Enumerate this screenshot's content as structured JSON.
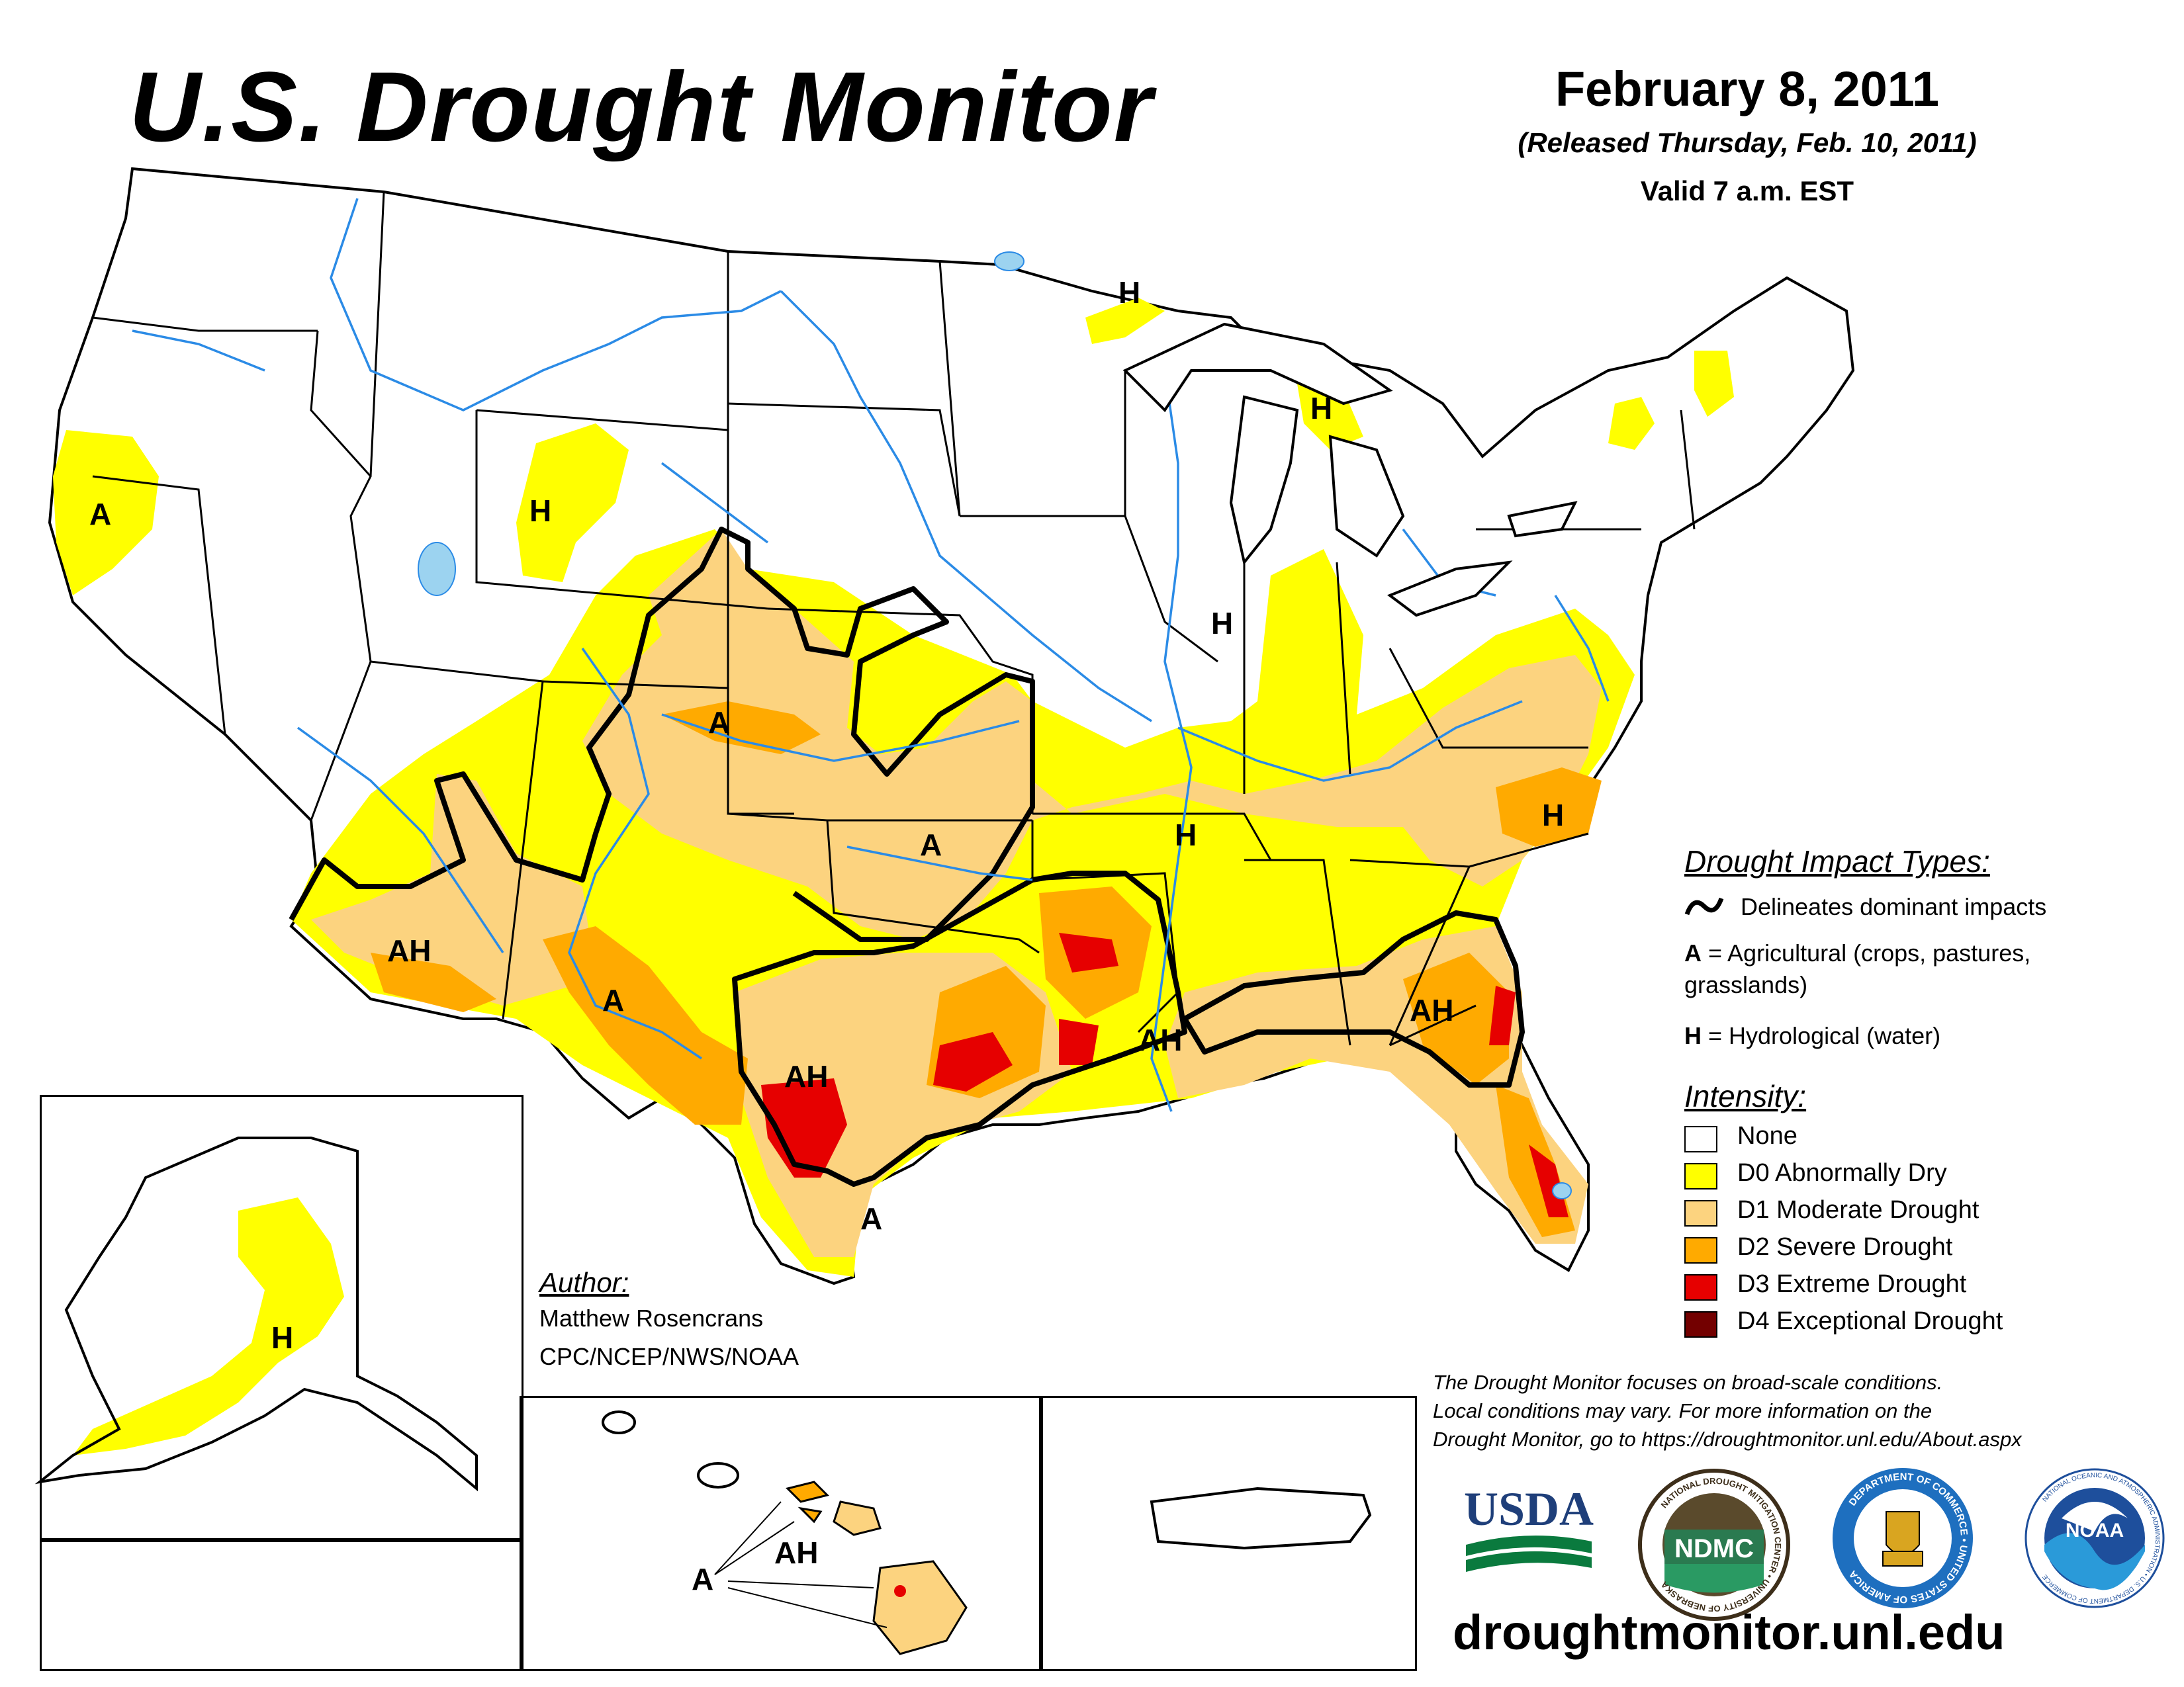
{
  "header": {
    "title": "U.S. Drought Monitor",
    "date": "February 8, 2011",
    "released": "(Released Thursday, Feb. 10, 2011)",
    "valid": "Valid 7 a.m. EST"
  },
  "map_labels": {
    "ca": "A",
    "wy": "H",
    "co": "A",
    "ks": "A",
    "az": "AH",
    "nm": "A",
    "tx": "AH",
    "tx_south": "A",
    "ms": "AH",
    "ga": "AH",
    "nc": "H",
    "il": "H",
    "mo": "H",
    "mn": "H",
    "mi": "H",
    "ak": "H",
    "hi_a": "A",
    "hi_ah": "AH"
  },
  "legend": {
    "impact_title": "Drought Impact Types:",
    "delineates": "Delineates dominant impacts",
    "ag_code": "A",
    "ag_text": " = Agricultural (crops, pastures,",
    "ag_text2": "grasslands)",
    "hy_code": "H",
    "hy_text": " = Hydrological (water)",
    "intensity_title": "Intensity:",
    "categories": [
      {
        "label": "None",
        "color": "#ffffff"
      },
      {
        "label": "D0 Abnormally Dry",
        "color": "#ffff00"
      },
      {
        "label": "D1 Moderate Drought",
        "color": "#fcd37f"
      },
      {
        "label": "D2 Severe Drought",
        "color": "#ffaa00"
      },
      {
        "label": "D3 Extreme Drought",
        "color": "#e60000"
      },
      {
        "label": "D4 Exceptional Drought",
        "color": "#730000"
      }
    ]
  },
  "author": {
    "title": "Author:",
    "name": "Matthew Rosencrans",
    "org": "CPC/NCEP/NWS/NOAA"
  },
  "note": {
    "line1": "The Drought Monitor focuses on broad-scale conditions.",
    "line2": "Local conditions may vary. For more information on the",
    "line3": "Drought Monitor, go to https://droughtmonitor.unl.edu/About.aspx"
  },
  "logos": {
    "usda": "USDA",
    "ndmc": "NDMC",
    "ndmc_ring": "NATIONAL DROUGHT MITIGATION CENTER • UNIVERSITY OF NEBRASKA",
    "commerce_ring": "DEPARTMENT OF COMMERCE • UNITED STATES OF AMERICA",
    "noaa": "NOAA",
    "noaa_ring": "NATIONAL OCEANIC AND ATMOSPHERIC ADMINISTRATION • U.S. DEPARTMENT OF COMMERCE"
  },
  "footer": {
    "url": "droughtmonitor.unl.edu"
  }
}
